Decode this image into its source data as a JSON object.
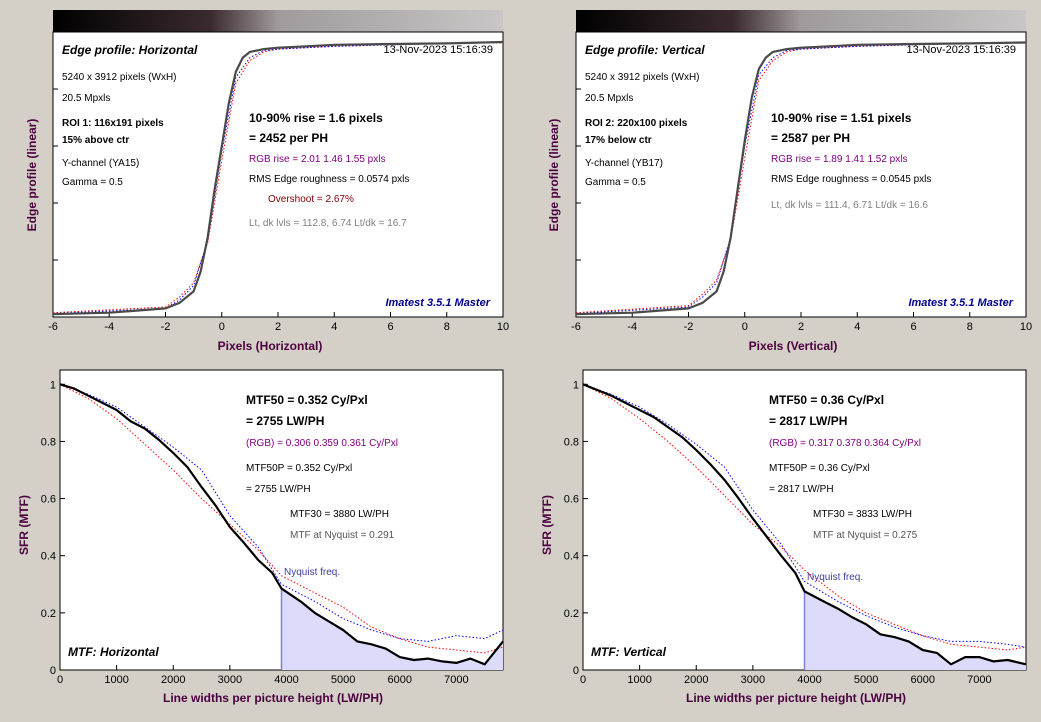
{
  "chart_data": [
    {
      "type": "line",
      "title": "Edge profile: Horizontal",
      "timestamp": "13-Nov-2023 15:16:39",
      "xlabel": "Pixels (Horizontal)",
      "ylabel": "Edge profile (linear)",
      "xlim": [
        -6,
        10
      ],
      "xticks": [
        -6,
        -4,
        -2,
        0,
        2,
        4,
        6,
        8,
        10
      ],
      "ylim": [
        0,
        1
      ],
      "grid": true,
      "series": [
        {
          "name": "Y",
          "color": "#4a4a4a",
          "x": [
            -6,
            -4,
            -2,
            -1.5,
            -1,
            -0.75,
            -0.5,
            -0.25,
            0,
            0.25,
            0.5,
            0.75,
            1,
            1.5,
            2,
            3,
            4,
            6,
            8,
            10
          ],
          "y": [
            0.01,
            0.015,
            0.03,
            0.05,
            0.09,
            0.16,
            0.28,
            0.45,
            0.6,
            0.75,
            0.86,
            0.91,
            0.93,
            0.94,
            0.945,
            0.95,
            0.955,
            0.958,
            0.96,
            0.965
          ]
        },
        {
          "name": "R",
          "color": "#ff0000",
          "x": [
            -6,
            -2,
            -1.5,
            -1,
            -0.5,
            0,
            0.5,
            1,
            1.5,
            2,
            4,
            6,
            8,
            10
          ],
          "y": [
            0.015,
            0.035,
            0.07,
            0.12,
            0.26,
            0.55,
            0.82,
            0.9,
            0.93,
            0.94,
            0.95,
            0.955,
            0.96,
            0.962
          ]
        },
        {
          "name": "B",
          "color": "#0000ff",
          "x": [
            -6,
            -2,
            -1.5,
            -1,
            -0.5,
            0,
            0.5,
            1,
            1.5,
            2,
            4,
            6,
            8,
            10
          ],
          "y": [
            0.012,
            0.03,
            0.06,
            0.11,
            0.27,
            0.58,
            0.84,
            0.91,
            0.935,
            0.94,
            0.95,
            0.955,
            0.96,
            0.963
          ]
        }
      ],
      "info_lines": [
        "5240 x 3912 pixels (WxH)",
        "20.5 Mpxls",
        "ROI 1:  116x191 pixels",
        "15% above ctr",
        "Y-channel  (YA15)",
        "Gamma = 0.5"
      ],
      "result_lines": [
        "10-90% rise = 1.6 pixels",
        "= 2452 per PH",
        "RGB rise = 2.01  1.46  1.55 pxls",
        "RMS Edge roughness = 0.0574 pxls",
        "Overshoot = 2.67%",
        "Lt, dk lvls = 112.8, 6.74   Lt/dk = 16.7"
      ],
      "watermark": "Imatest 3.5.1 Master"
    },
    {
      "type": "line",
      "title": "Edge profile: Vertical",
      "timestamp": "13-Nov-2023 15:16:39",
      "xlabel": "Pixels (Vertical)",
      "ylabel": "Edge profile (linear)",
      "xlim": [
        -6,
        10
      ],
      "xticks": [
        -6,
        -4,
        -2,
        0,
        2,
        4,
        6,
        8,
        10
      ],
      "ylim": [
        0,
        1
      ],
      "grid": true,
      "series": [
        {
          "name": "Y",
          "color": "#4a4a4a",
          "x": [
            -6,
            -4,
            -2,
            -1.5,
            -1,
            -0.75,
            -0.5,
            -0.25,
            0,
            0.25,
            0.5,
            0.75,
            1,
            1.5,
            2,
            3,
            4,
            6,
            8,
            10
          ],
          "y": [
            0.01,
            0.015,
            0.03,
            0.05,
            0.09,
            0.16,
            0.28,
            0.45,
            0.62,
            0.77,
            0.87,
            0.91,
            0.93,
            0.94,
            0.945,
            0.95,
            0.955,
            0.958,
            0.96,
            0.963
          ]
        },
        {
          "name": "R",
          "color": "#ff0000",
          "x": [
            -6,
            -2,
            -1.5,
            -1,
            -0.5,
            0,
            0.5,
            1,
            1.5,
            2,
            4,
            6,
            8,
            10
          ],
          "y": [
            0.015,
            0.04,
            0.08,
            0.13,
            0.27,
            0.56,
            0.83,
            0.9,
            0.93,
            0.94,
            0.95,
            0.955,
            0.96,
            0.962
          ]
        },
        {
          "name": "B",
          "color": "#0000ff",
          "x": [
            -6,
            -2,
            -1.5,
            -1,
            -0.5,
            0,
            0.5,
            1,
            1.5,
            2,
            4,
            6,
            8,
            10
          ],
          "y": [
            0.012,
            0.035,
            0.07,
            0.12,
            0.28,
            0.6,
            0.85,
            0.91,
            0.935,
            0.94,
            0.95,
            0.955,
            0.96,
            0.963
          ]
        }
      ],
      "info_lines": [
        "5240 x 3912 pixels (WxH)",
        "20.5 Mpxls",
        "ROI 2:  220x100 pixels",
        "17% below ctr",
        "Y-channel  (YB17)",
        "Gamma = 0.5"
      ],
      "result_lines": [
        "10-90% rise = 1.51 pixels",
        "= 2587 per PH",
        "RGB rise = 1.89  1.41  1.52 pxls",
        "RMS Edge roughness = 0.0545 pxls",
        "",
        "Lt, dk lvls = 111.4, 6.71   Lt/dk = 16.6"
      ],
      "watermark": "Imatest 3.5.1 Master"
    },
    {
      "type": "line",
      "title": "MTF: Horizontal",
      "xlabel": "Line widths per picture height (LW/PH)",
      "ylabel": "SFR (MTF)",
      "xlim": [
        0,
        7824
      ],
      "xticks": [
        0,
        1000,
        2000,
        3000,
        4000,
        5000,
        6000,
        7000
      ],
      "ylim": [
        0,
        1.05
      ],
      "yticks": [
        0,
        0.2,
        0.4,
        0.6,
        0.8,
        1
      ],
      "grid": true,
      "nyquist": 3912,
      "nyquist_label": "Nyquist freq.",
      "series": [
        {
          "name": "Y",
          "color": "#000000",
          "x": [
            0,
            250,
            500,
            750,
            1000,
            1250,
            1500,
            1750,
            2000,
            2250,
            2500,
            2750,
            3000,
            3250,
            3500,
            3750,
            3912,
            4250,
            4500,
            4750,
            5000,
            5250,
            5500,
            5750,
            6000,
            6250,
            6500,
            6750,
            7000,
            7250,
            7500,
            7824
          ],
          "y": [
            1,
            0.985,
            0.96,
            0.935,
            0.91,
            0.87,
            0.845,
            0.805,
            0.76,
            0.71,
            0.64,
            0.575,
            0.5,
            0.445,
            0.385,
            0.34,
            0.285,
            0.24,
            0.2,
            0.17,
            0.14,
            0.1,
            0.09,
            0.075,
            0.045,
            0.035,
            0.04,
            0.03,
            0.025,
            0.04,
            0.02,
            0.1
          ]
        },
        {
          "name": "R",
          "color": "#ff0000",
          "x": [
            0,
            500,
            1000,
            1500,
            2000,
            2500,
            3000,
            3500,
            3912,
            4500,
            5000,
            5500,
            6000,
            6500,
            7000,
            7500,
            7824
          ],
          "y": [
            1,
            0.95,
            0.88,
            0.79,
            0.7,
            0.6,
            0.51,
            0.42,
            0.33,
            0.27,
            0.22,
            0.15,
            0.11,
            0.08,
            0.07,
            0.06,
            0.08
          ]
        },
        {
          "name": "B",
          "color": "#0000ff",
          "x": [
            0,
            500,
            1000,
            1500,
            2000,
            2500,
            3000,
            3500,
            3912,
            4500,
            5000,
            5500,
            6000,
            6500,
            7000,
            7500,
            7824
          ],
          "y": [
            1,
            0.965,
            0.92,
            0.85,
            0.78,
            0.7,
            0.54,
            0.43,
            0.3,
            0.24,
            0.18,
            0.14,
            0.11,
            0.1,
            0.12,
            0.11,
            0.14
          ]
        }
      ],
      "result_lines": [
        "MTF50 = 0.352 Cy/Pxl",
        "= 2755 LW/PH",
        "(RGB) = 0.306  0.359  0.361 Cy/Pxl",
        "MTF50P = 0.352 Cy/Pxl",
        "= 2755 LW/PH",
        "MTF30 = 3880 LW/PH",
        "MTF at Nyquist = 0.291"
      ]
    },
    {
      "type": "line",
      "title": "MTF: Vertical",
      "xlabel": "Line widths per picture height (LW/PH)",
      "ylabel": "SFR (MTF)",
      "xlim": [
        0,
        7824
      ],
      "xticks": [
        0,
        1000,
        2000,
        3000,
        4000,
        5000,
        6000,
        7000
      ],
      "ylim": [
        0,
        1.05
      ],
      "yticks": [
        0,
        0.2,
        0.4,
        0.6,
        0.8,
        1
      ],
      "grid": true,
      "nyquist": 3912,
      "nyquist_label": "Nyquist freq.",
      "series": [
        {
          "name": "Y",
          "color": "#000000",
          "x": [
            0,
            250,
            500,
            750,
            1000,
            1250,
            1500,
            1750,
            2000,
            2250,
            2500,
            2750,
            3000,
            3250,
            3500,
            3750,
            3912,
            4250,
            4500,
            4750,
            5000,
            5250,
            5500,
            5750,
            6000,
            6250,
            6500,
            6750,
            7000,
            7250,
            7500,
            7824
          ],
          "y": [
            1,
            0.98,
            0.96,
            0.935,
            0.91,
            0.885,
            0.85,
            0.815,
            0.77,
            0.72,
            0.665,
            0.6,
            0.53,
            0.465,
            0.4,
            0.34,
            0.275,
            0.24,
            0.215,
            0.185,
            0.16,
            0.125,
            0.115,
            0.1,
            0.07,
            0.06,
            0.02,
            0.045,
            0.045,
            0.03,
            0.035,
            0.02
          ]
        },
        {
          "name": "R",
          "color": "#ff0000",
          "x": [
            0,
            500,
            1000,
            1500,
            2000,
            2500,
            3000,
            3500,
            3912,
            4500,
            5000,
            5500,
            6000,
            6500,
            7000,
            7500,
            7824
          ],
          "y": [
            1,
            0.95,
            0.88,
            0.8,
            0.71,
            0.61,
            0.51,
            0.43,
            0.35,
            0.26,
            0.2,
            0.16,
            0.12,
            0.09,
            0.08,
            0.07,
            0.08
          ]
        },
        {
          "name": "B",
          "color": "#0000ff",
          "x": [
            0,
            500,
            1000,
            1500,
            2000,
            2500,
            3000,
            3500,
            3912,
            4500,
            5000,
            5500,
            6000,
            6500,
            7000,
            7500,
            7824
          ],
          "y": [
            1,
            0.965,
            0.92,
            0.86,
            0.79,
            0.71,
            0.56,
            0.44,
            0.31,
            0.24,
            0.19,
            0.15,
            0.12,
            0.1,
            0.1,
            0.09,
            0.08
          ]
        }
      ],
      "result_lines": [
        "MTF50 = 0.36 Cy/Pxl",
        "= 2817 LW/PH",
        "(RGB) = 0.317  0.378  0.364 Cy/Pxl",
        "MTF50P = 0.36 Cy/Pxl",
        "= 2817 LW/PH",
        "MTF30 = 3833 LW/PH",
        "MTF at Nyquist = 0.275"
      ]
    }
  ]
}
